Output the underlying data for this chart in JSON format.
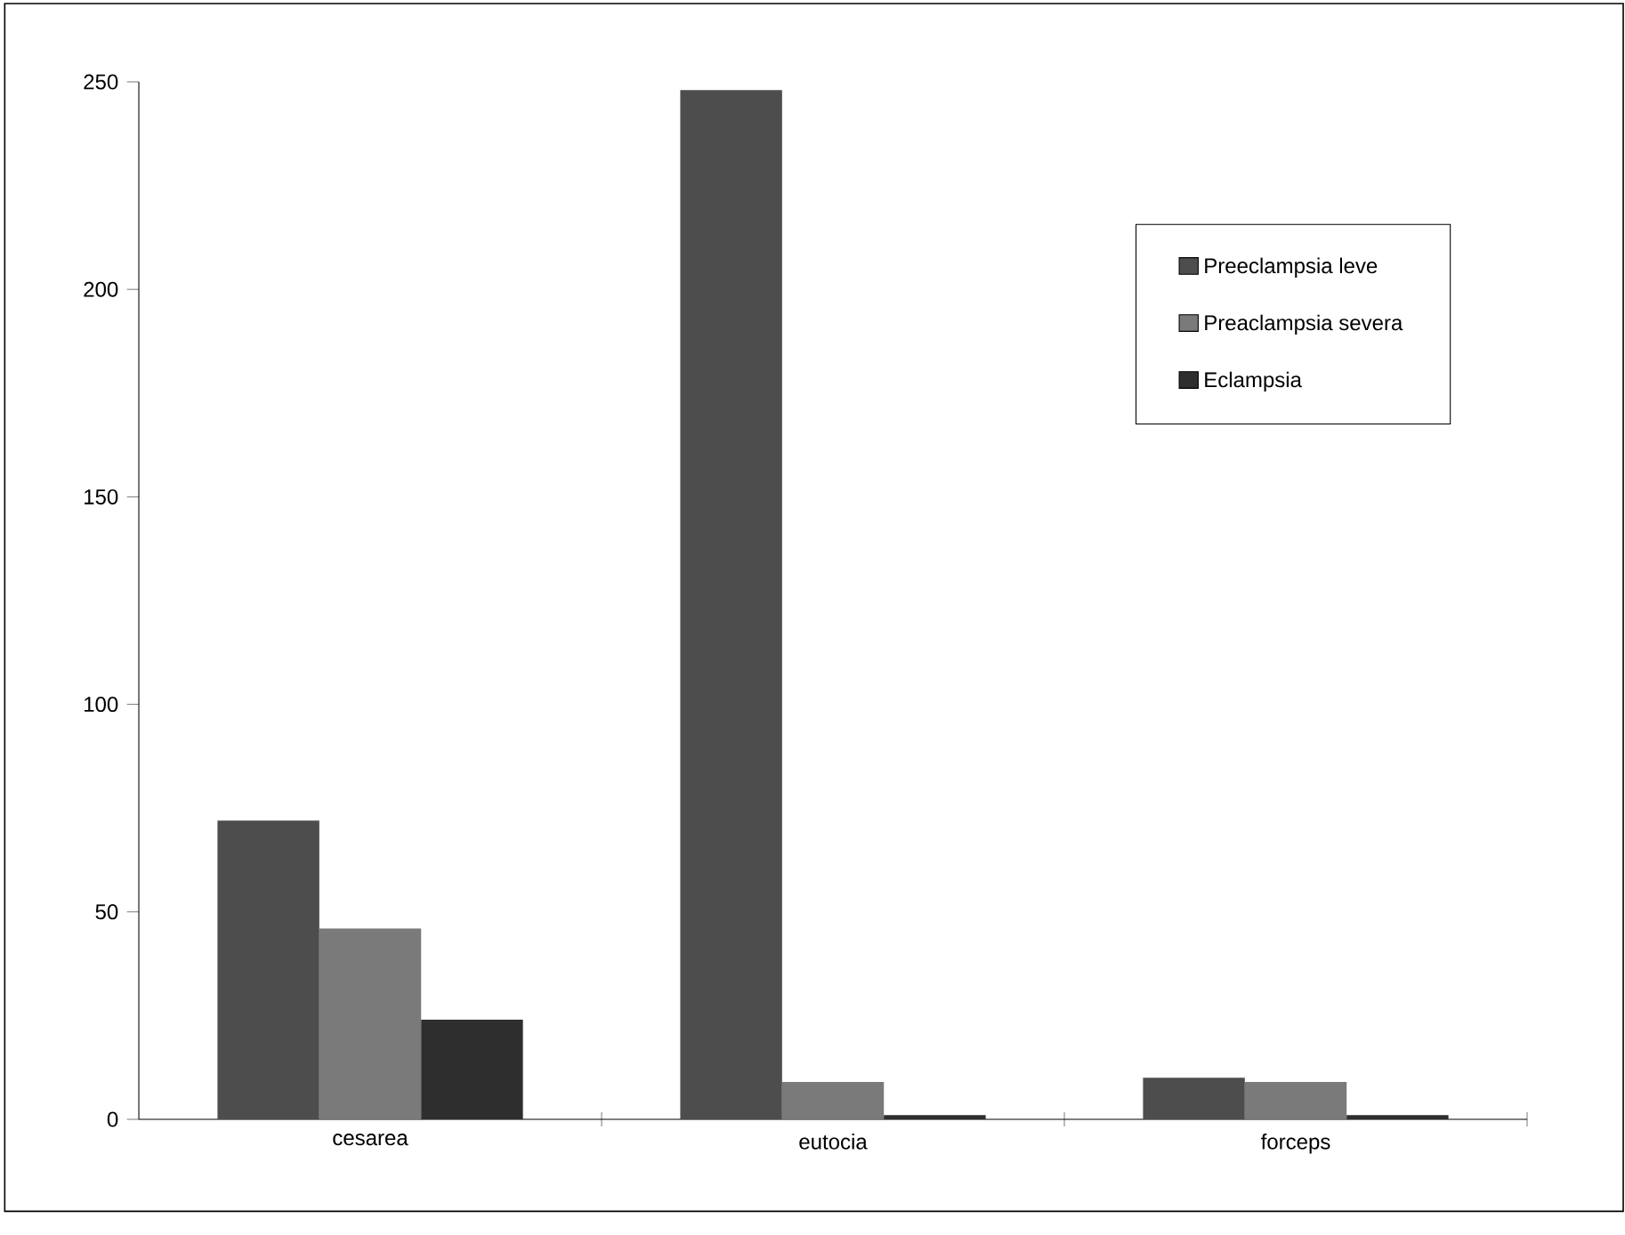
{
  "chart_data": {
    "type": "bar",
    "categories": [
      "cesarea",
      "eutocia",
      "forceps"
    ],
    "series": [
      {
        "name": "Preeclampsia leve",
        "color": "#4d4d4d",
        "values": [
          72,
          248,
          10
        ]
      },
      {
        "name": "Preaclampsia severa",
        "color": "#7a7a7a",
        "values": [
          46,
          9,
          9
        ]
      },
      {
        "name": "Eclampsia",
        "color": "#2e2e2e",
        "values": [
          24,
          1,
          1
        ]
      }
    ],
    "ylim": [
      0,
      250
    ],
    "yticks": [
      0,
      50,
      100,
      150,
      200,
      250
    ],
    "grid": false,
    "legend": "top right"
  }
}
